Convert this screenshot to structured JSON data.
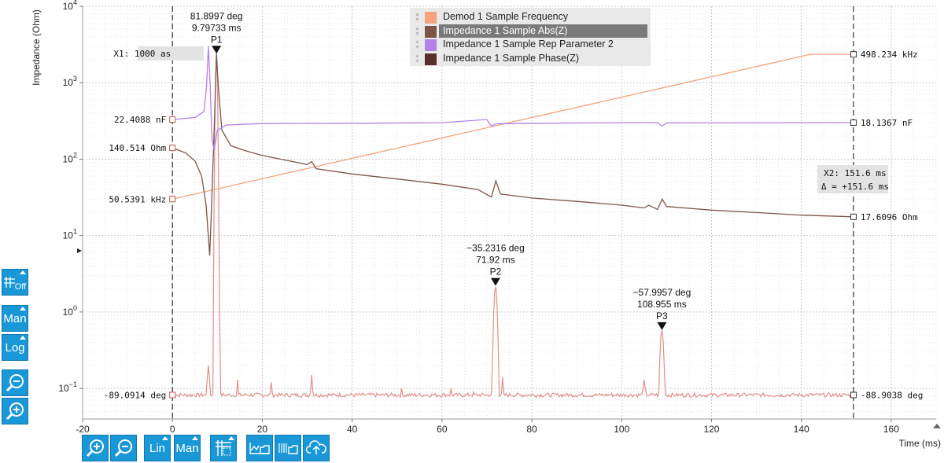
{
  "colors": {
    "freq": "#f4a37a",
    "abs": "#7d5548",
    "rep": "#b382e8",
    "phase": "#e0908a",
    "accent": "#1a97d6"
  },
  "toolbar_left": [
    {
      "name": "grid-toggle-button",
      "label": "Off",
      "icon": "grid-icon"
    },
    {
      "name": "y-scale-man-button",
      "label": "Man",
      "icon": ""
    },
    {
      "name": "y-scale-log-button",
      "label": "Log",
      "icon": ""
    },
    {
      "name": "y-zoom-out-button",
      "label": "",
      "icon": "zoom-out-icon"
    },
    {
      "name": "y-zoom-in-button",
      "label": "",
      "icon": "zoom-in-icon"
    }
  ],
  "toolbar_bottom": [
    {
      "name": "x-zoom-in-button",
      "label": "",
      "icon": "zoom-in-icon"
    },
    {
      "name": "x-zoom-out-button",
      "label": "",
      "icon": "zoom-out-icon"
    },
    {
      "name": "x-scale-lin-button",
      "label": "Lin",
      "icon": ""
    },
    {
      "name": "x-scale-man-button",
      "label": "Man",
      "icon": ""
    },
    {
      "name": "cursor-math-button",
      "label": "",
      "icon": "cursor-grid-icon"
    },
    {
      "name": "save-plot-button",
      "label": "",
      "icon": "save-plot-icon"
    },
    {
      "name": "save-data-button",
      "label": "",
      "icon": "save-data-icon"
    },
    {
      "name": "cloud-upload-button",
      "label": "",
      "icon": "cloud-upload-icon"
    }
  ],
  "chart_data": {
    "type": "line",
    "title": "",
    "xlabel": "Time (ms)",
    "ylabel": "Impedance (Ohm)",
    "xlim": [
      -20,
      170
    ],
    "ylim_log10": [
      -1.4,
      4
    ],
    "yscale": "log",
    "x_ticks": [
      "-20",
      "0",
      "20",
      "40",
      "60",
      "80",
      "100",
      "120",
      "140",
      "160"
    ],
    "y_ticks": [
      {
        "mant": "10",
        "exp": "4",
        "value": 10000
      },
      {
        "mant": "10",
        "exp": "3",
        "value": 1000
      },
      {
        "mant": "10",
        "exp": "2",
        "value": 100
      },
      {
        "mant": "10",
        "exp": "1",
        "value": 10
      },
      {
        "mant": "10",
        "exp": "0",
        "value": 1
      },
      {
        "mant": "10",
        "exp": "−1",
        "value": 0.1
      }
    ],
    "grid": true,
    "legend_position": "top-center",
    "series": [
      {
        "name": "Demod 1 Sample Frequency",
        "color_key": "freq",
        "points": [
          [
            0,
            30
          ],
          [
            142,
            2350
          ],
          [
            151.6,
            2350
          ]
        ]
      },
      {
        "name": "Impedance 1 Sample Abs(Z)",
        "color_key": "abs",
        "selected": true,
        "points": [
          [
            0,
            140.5
          ],
          [
            3,
            120
          ],
          [
            5,
            95
          ],
          [
            6.5,
            60
          ],
          [
            7.5,
            25
          ],
          [
            8.3,
            5.5
          ],
          [
            8.8,
            35
          ],
          [
            9.3,
            250
          ],
          [
            9.8,
            2400
          ],
          [
            10.2,
            900
          ],
          [
            11,
            240
          ],
          [
            13,
            150
          ],
          [
            16,
            130
          ],
          [
            20,
            112
          ],
          [
            24,
            100
          ],
          [
            30,
            85
          ],
          [
            31,
            93
          ],
          [
            32,
            75
          ],
          [
            40,
            64
          ],
          [
            50,
            55
          ],
          [
            60,
            47
          ],
          [
            68,
            40
          ],
          [
            71,
            32
          ],
          [
            72,
            52
          ],
          [
            73,
            35
          ],
          [
            80,
            31
          ],
          [
            90,
            28
          ],
          [
            100,
            25
          ],
          [
            105,
            23
          ],
          [
            106,
            25
          ],
          [
            108,
            22
          ],
          [
            109,
            30
          ],
          [
            110,
            24
          ],
          [
            120,
            21.5
          ],
          [
            130,
            20
          ],
          [
            140,
            18.5
          ],
          [
            151.6,
            17.6
          ]
        ]
      },
      {
        "name": "Impedance 1 Sample Rep Parameter 2",
        "color_key": "rep",
        "points": [
          [
            0,
            330
          ],
          [
            5,
            350
          ],
          [
            7,
            420
          ],
          [
            7.6,
            900
          ],
          [
            8,
            3000
          ],
          [
            8.4,
            900
          ],
          [
            8.8,
            180
          ],
          [
            9.3,
            130
          ],
          [
            10,
            240
          ],
          [
            12,
            280
          ],
          [
            20,
            292
          ],
          [
            40,
            295
          ],
          [
            60,
            300
          ],
          [
            70,
            330
          ],
          [
            71,
            270
          ],
          [
            72,
            290
          ],
          [
            80,
            295
          ],
          [
            100,
            300
          ],
          [
            108,
            300
          ],
          [
            109,
            270
          ],
          [
            110,
            298
          ],
          [
            151.6,
            300
          ]
        ]
      },
      {
        "name": "Impedance 1 Sample Phase(Z)",
        "color_key": "phase",
        "axis": "phase",
        "points": [
          [
            0,
            -89.09
          ],
          [
            151.6,
            -88.9
          ]
        ]
      }
    ],
    "cursors": {
      "x1": {
        "label": "X1: 1000 as",
        "x": 0
      },
      "x2": {
        "label": "X2: 151.6 ms",
        "delta": "Δ = +151.6 ms",
        "x": 151.6
      }
    },
    "cursor_values_left": [
      {
        "text": "22.4088 nF",
        "y": 330
      },
      {
        "text": "140.514 Ohm",
        "y": 140.5
      },
      {
        "text": "50.5391 kHz",
        "y": 30
      },
      {
        "text": "-89.0914 deg",
        "y": 0.082
      }
    ],
    "cursor_values_right": [
      {
        "text": "498.234 kHz",
        "y": 2350
      },
      {
        "text": "18.1367 nF",
        "y": 300
      },
      {
        "text": "17.6096 Ohm",
        "y": 17.6
      },
      {
        "text": "-88.9038 deg",
        "y": 0.082
      }
    ],
    "peaks": [
      {
        "name": "P1",
        "phase": "81.8997 deg",
        "time": "9.79733 ms",
        "x": 9.8,
        "y": 2400
      },
      {
        "name": "P2",
        "phase": "−35.2316 deg",
        "time": "71.92 ms",
        "x": 71.92,
        "y": 2.2
      },
      {
        "name": "P3",
        "phase": "−57.9957 deg",
        "time": "108.955 ms",
        "x": 108.955,
        "y": 0.58
      }
    ]
  }
}
